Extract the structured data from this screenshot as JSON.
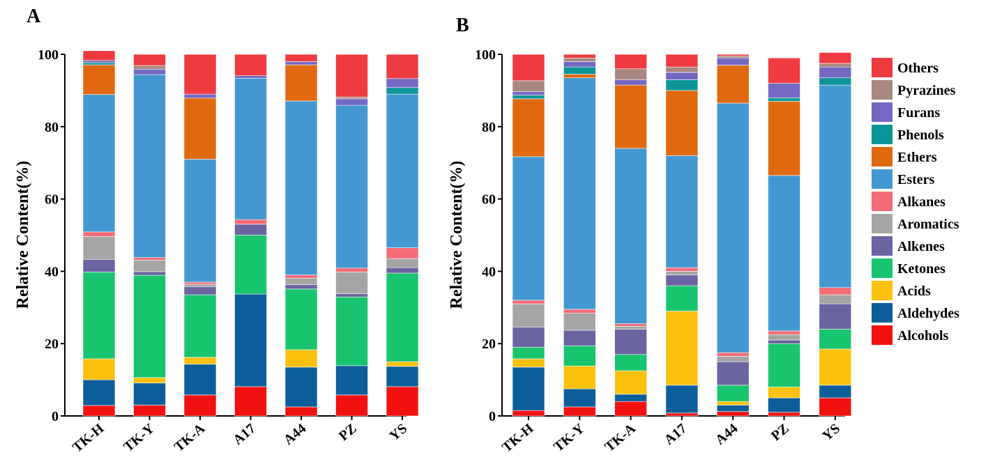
{
  "legend": {
    "items": [
      {
        "label": "Others",
        "color": "#EE3A40"
      },
      {
        "label": "Pyrazines",
        "color": "#A88880"
      },
      {
        "label": "Furans",
        "color": "#7468C3"
      },
      {
        "label": "Phenols",
        "color": "#0C9596"
      },
      {
        "label": "Ethers",
        "color": "#E0680F"
      },
      {
        "label": "Esters",
        "color": "#4398D2"
      },
      {
        "label": "Alkanes",
        "color": "#F46C77"
      },
      {
        "label": "Aromatics",
        "color": "#A5A5A5"
      },
      {
        "label": "Alkenes",
        "color": "#6A64A0"
      },
      {
        "label": "Ketones",
        "color": "#19C46E"
      },
      {
        "label": "Acids",
        "color": "#FCC10D"
      },
      {
        "label": "Aldehydes",
        "color": "#0B5E99"
      },
      {
        "label": "Alcohols",
        "color": "#F21111"
      }
    ]
  },
  "chart_data": [
    {
      "type": "bar",
      "stacked": true,
      "panel_label": "A",
      "ylabel": "Relative Content(%)",
      "ylim": [
        0,
        100
      ],
      "yticks": [
        0,
        20,
        40,
        60,
        80,
        100
      ],
      "categories": [
        "TK-H",
        "TK-Y",
        "TK-A",
        "A17",
        "A44",
        "PZ",
        "YS"
      ],
      "series": [
        {
          "name": "Alcohols",
          "values": [
            2.9,
            3.0,
            5.8,
            8.1,
            2.5,
            5.8,
            8.1
          ]
        },
        {
          "name": "Aldehydes",
          "values": [
            7.1,
            6.1,
            8.5,
            25.6,
            11.0,
            8.1,
            5.6
          ]
        },
        {
          "name": "Acids",
          "values": [
            5.8,
            1.5,
            1.9,
            0.0,
            4.8,
            0.0,
            1.3
          ]
        },
        {
          "name": "Ketones",
          "values": [
            24.0,
            28.3,
            17.3,
            16.3,
            16.8,
            19.0,
            24.5
          ]
        },
        {
          "name": "Alkenes",
          "values": [
            3.5,
            1.0,
            2.2,
            3.0,
            1.2,
            0.9,
            1.5
          ]
        },
        {
          "name": "Aromatics",
          "values": [
            6.3,
            3.2,
            0.7,
            0.0,
            1.8,
            6.0,
            2.5
          ]
        },
        {
          "name": "Alkanes",
          "values": [
            1.3,
            0.7,
            0.6,
            1.3,
            0.9,
            1.1,
            3.0
          ]
        },
        {
          "name": "Esters",
          "values": [
            38.0,
            50.6,
            34.0,
            39.1,
            48.1,
            45.0,
            42.5
          ]
        },
        {
          "name": "Ethers",
          "values": [
            8.2,
            0.0,
            16.9,
            0.0,
            10.0,
            0.0,
            0.0
          ]
        },
        {
          "name": "Phenols",
          "values": [
            0.6,
            0.0,
            0.0,
            0.0,
            0.0,
            0.0,
            1.8
          ]
        },
        {
          "name": "Furans",
          "values": [
            0.6,
            1.5,
            1.1,
            0.7,
            0.9,
            1.8,
            2.5
          ]
        },
        {
          "name": "Pyrazines",
          "values": [
            0.0,
            1.0,
            0.0,
            0.0,
            0.0,
            0.5,
            0.0
          ]
        },
        {
          "name": "Others",
          "values": [
            2.7,
            3.1,
            11.0,
            5.9,
            2.0,
            11.8,
            6.7
          ]
        }
      ]
    },
    {
      "type": "bar",
      "stacked": true,
      "panel_label": "B",
      "ylabel": "Relative Content(%)",
      "ylim": [
        0,
        100
      ],
      "yticks": [
        0,
        20,
        40,
        60,
        80,
        100
      ],
      "categories": [
        "TK-H",
        "TK-Y",
        "TK-A",
        "A17",
        "A44",
        "PZ",
        "YS"
      ],
      "series": [
        {
          "name": "Alcohols",
          "values": [
            1.5,
            2.5,
            4.0,
            0.8,
            1.2,
            1.0,
            5.0
          ]
        },
        {
          "name": "Aldehydes",
          "values": [
            12.0,
            5.0,
            2.0,
            7.7,
            1.8,
            4.0,
            3.5
          ]
        },
        {
          "name": "Acids",
          "values": [
            2.3,
            6.3,
            6.5,
            20.5,
            1.0,
            3.0,
            10.0
          ]
        },
        {
          "name": "Ketones",
          "values": [
            3.2,
            5.6,
            4.5,
            7.0,
            4.5,
            12.0,
            5.5
          ]
        },
        {
          "name": "Alkenes",
          "values": [
            5.6,
            4.3,
            7.0,
            3.0,
            6.5,
            1.0,
            7.0
          ]
        },
        {
          "name": "Aromatics",
          "values": [
            6.4,
            4.7,
            0.8,
            1.0,
            1.5,
            1.5,
            2.5
          ]
        },
        {
          "name": "Alkanes",
          "values": [
            1.0,
            1.1,
            0.7,
            1.0,
            1.0,
            1.0,
            2.0
          ]
        },
        {
          "name": "Esters",
          "values": [
            39.7,
            64.0,
            48.5,
            31.0,
            69.0,
            43.0,
            56.0
          ]
        },
        {
          "name": "Ethers",
          "values": [
            16.0,
            1.0,
            17.5,
            18.0,
            10.5,
            20.5,
            0.0
          ]
        },
        {
          "name": "Phenols",
          "values": [
            1.0,
            2.0,
            0.0,
            3.0,
            0.0,
            1.0,
            2.0
          ]
        },
        {
          "name": "Furans",
          "values": [
            1.0,
            1.5,
            1.5,
            2.0,
            2.0,
            4.0,
            3.0
          ]
        },
        {
          "name": "Pyrazines",
          "values": [
            3.0,
            1.0,
            3.0,
            1.5,
            0.5,
            0.0,
            1.0
          ]
        },
        {
          "name": "Others",
          "values": [
            7.3,
            1.0,
            4.0,
            3.5,
            0.5,
            7.0,
            3.0
          ]
        }
      ]
    }
  ]
}
